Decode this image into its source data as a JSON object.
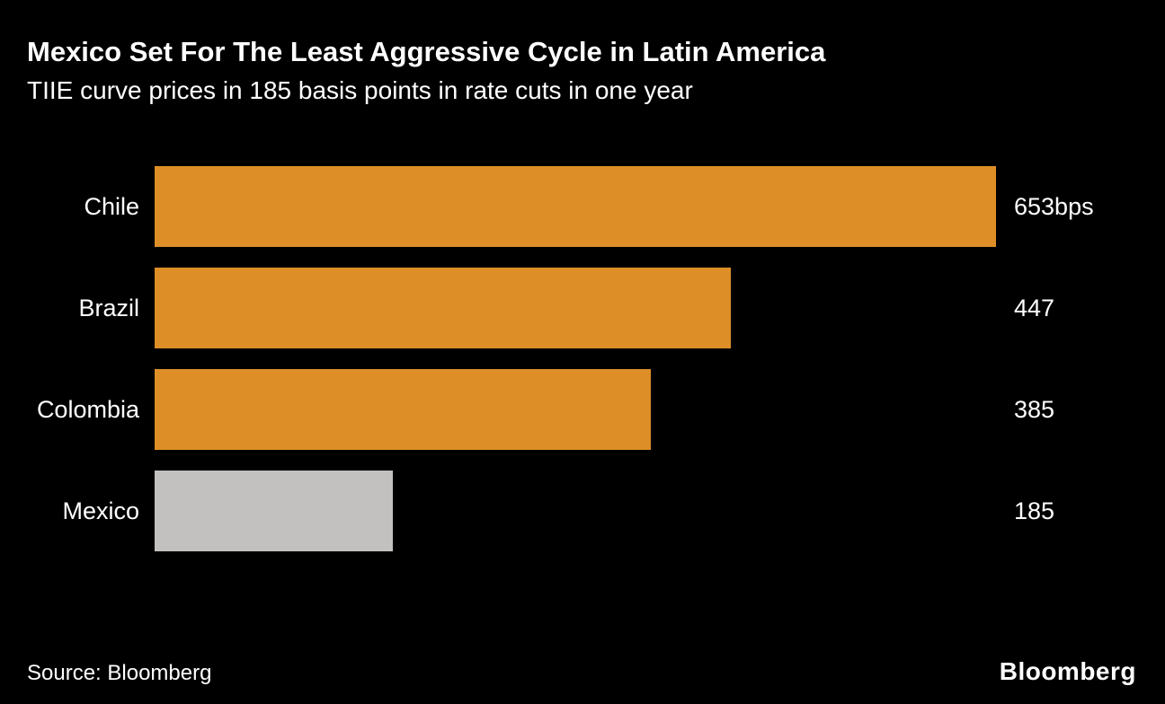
{
  "header": {
    "title": "Mexico Set For The Least Aggressive Cycle in Latin America",
    "subtitle": "TIIE curve prices in 185 basis points in rate cuts in one year"
  },
  "footer": {
    "source": "Source: Bloomberg",
    "logo": "Bloomberg"
  },
  "colors": {
    "background": "#000000",
    "text": "#ffffff",
    "accent_orange": "#DD8E27",
    "muted_gray": "#C3C1BF"
  },
  "chart_data": {
    "type": "bar",
    "orientation": "horizontal",
    "title": "Mexico Set For The Least Aggressive Cycle in Latin America",
    "subtitle": "TIIE curve prices in 185 basis points in rate cuts in one year",
    "categories": [
      "Chile",
      "Brazil",
      "Colombia",
      "Mexico"
    ],
    "values": [
      653,
      447,
      385,
      185
    ],
    "value_labels": [
      "653bps",
      "447",
      "385",
      "185"
    ],
    "bar_colors": [
      "#DD8E27",
      "#DD8E27",
      "#DD8E27",
      "#C3C1BF"
    ],
    "unit": "bps",
    "xlim": [
      0,
      653
    ],
    "grid": false,
    "legend": "none"
  }
}
